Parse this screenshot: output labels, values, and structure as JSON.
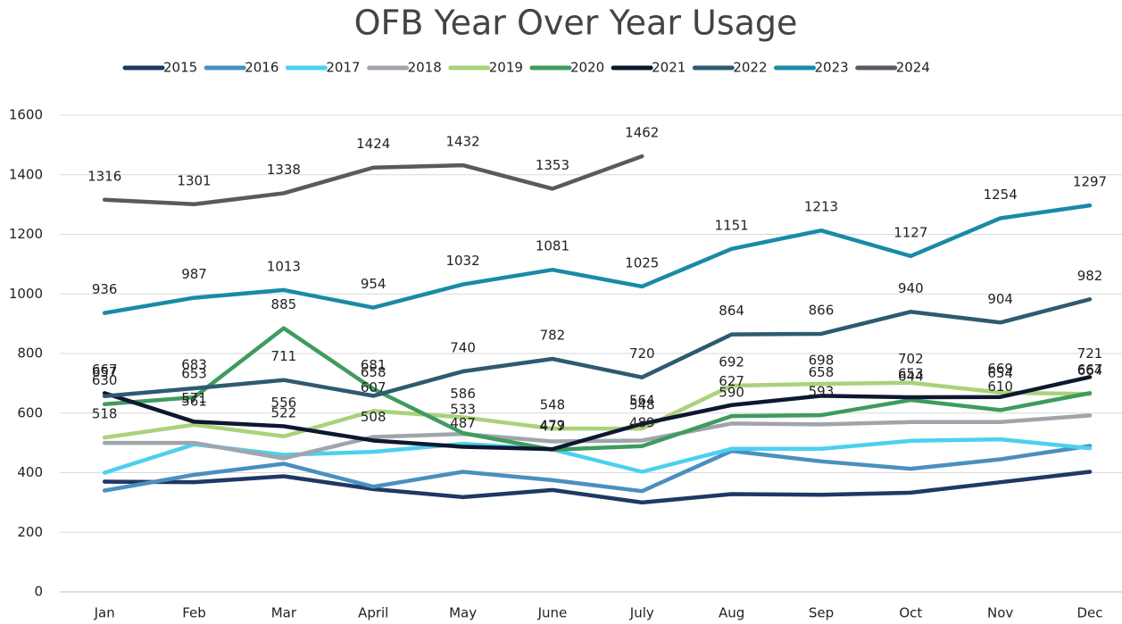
{
  "chart_data": {
    "type": "line",
    "title": "OFB Year Over Year Usage",
    "categories": [
      "Jan",
      "Feb",
      "Mar",
      "April",
      "May",
      "June",
      "July",
      "Aug",
      "Sep",
      "Oct",
      "Nov",
      "Dec"
    ],
    "ylim": [
      0,
      1600
    ],
    "yticks": [
      0,
      200,
      400,
      600,
      800,
      1000,
      1200,
      1400,
      1600
    ],
    "grid": true,
    "legend": "top",
    "series": [
      {
        "name": "2015",
        "color": "#1f3864",
        "data_labels": false,
        "values": [
          370,
          368,
          388,
          345,
          318,
          342,
          300,
          328,
          326,
          333,
          368,
          403
        ]
      },
      {
        "name": "2016",
        "color": "#4a8fc0",
        "data_labels": false,
        "values": [
          340,
          393,
          430,
          353,
          403,
          375,
          338,
          473,
          438,
          413,
          445,
          490
        ]
      },
      {
        "name": "2017",
        "color": "#4dd0ee",
        "data_labels": false,
        "values": [
          400,
          495,
          460,
          470,
          497,
          478,
          403,
          480,
          480,
          507,
          512,
          482
        ]
      },
      {
        "name": "2018",
        "color": "#a0a5ac",
        "data_labels": false,
        "values": [
          500,
          500,
          448,
          520,
          530,
          505,
          508,
          565,
          562,
          570,
          570,
          592
        ]
      },
      {
        "name": "2019",
        "color": "#a9d27a",
        "data_labels": true,
        "values": [
          518,
          561,
          522,
          607,
          586,
          548,
          548,
          692,
          698,
          702,
          669,
          664
        ]
      },
      {
        "name": "2020",
        "color": "#3f9b5e",
        "data_labels": true,
        "values": [
          630,
          653,
          885,
          681,
          533,
          477,
          489,
          590,
          593,
          644,
          610,
          667
        ]
      },
      {
        "name": "2021",
        "color": "#0d1730",
        "data_labels": true,
        "values": [
          667,
          571,
          556,
          508,
          487,
          479,
          564,
          627,
          658,
          653,
          654,
          721
        ]
      },
      {
        "name": "2022",
        "color": "#2e5a72",
        "data_labels": true,
        "values": [
          657,
          683,
          711,
          658,
          740,
          782,
          720,
          864,
          866,
          940,
          904,
          982
        ]
      },
      {
        "name": "2023",
        "color": "#1a8aa5",
        "data_labels": true,
        "values": [
          936,
          987,
          1013,
          954,
          1032,
          1081,
          1025,
          1151,
          1213,
          1127,
          1254,
          1297
        ]
      },
      {
        "name": "2024",
        "color": "#555b61",
        "data_labels": true,
        "values": [
          1316,
          1301,
          1338,
          1424,
          1432,
          1353,
          1462,
          null,
          null,
          null,
          null,
          null
        ]
      }
    ]
  }
}
